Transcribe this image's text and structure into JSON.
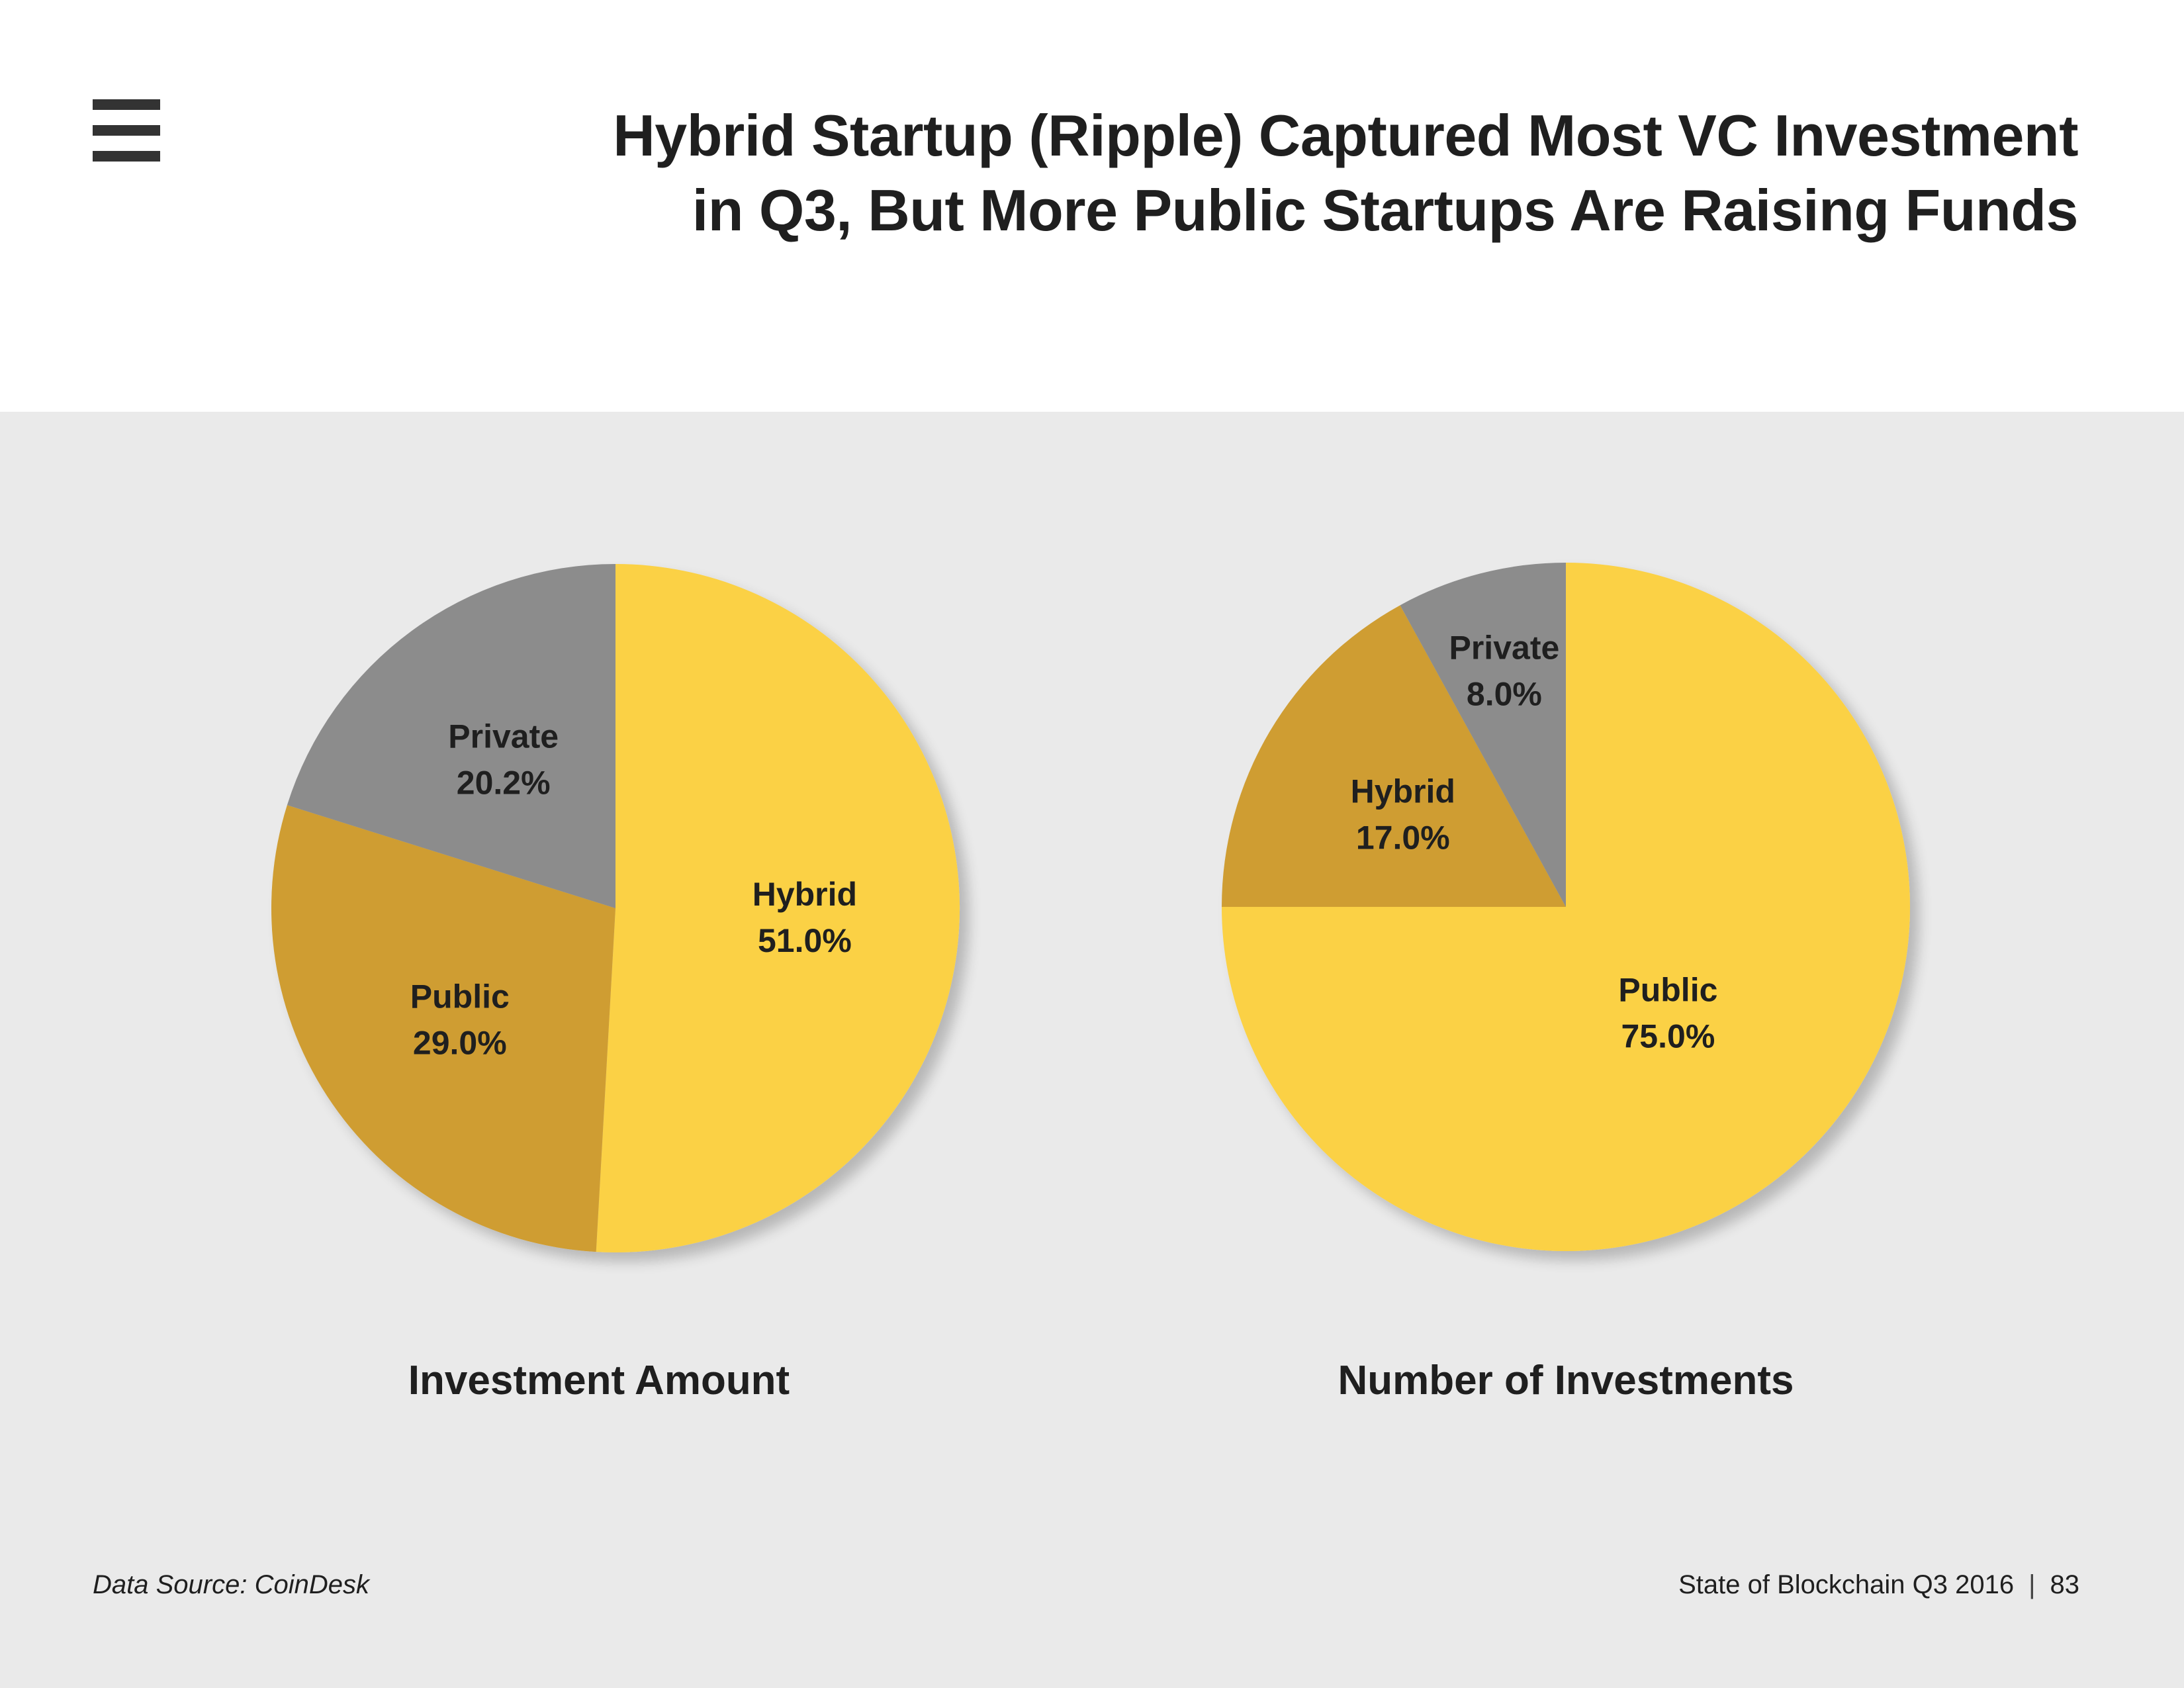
{
  "header": {
    "title_line1": "Hybrid Startup (Ripple) Captured Most VC Investment",
    "title_line2": "in Q3, But More Public Startups Are Raising Funds",
    "menu_icon": "hamburger-menu-icon"
  },
  "colors": {
    "hybrid": "#fbd144",
    "public": "#cf9d31",
    "private": "#8c8c8c",
    "panel_background": "#eaeaea",
    "text": "#1f1f1f"
  },
  "chart_data": [
    {
      "type": "pie",
      "title": "Investment Amount",
      "slices": [
        {
          "label": "Hybrid",
          "value": 51.0,
          "display": "51.0%",
          "color": "#fbd144"
        },
        {
          "label": "Public",
          "value": 29.0,
          "display": "29.0%",
          "color": "#cf9d31"
        },
        {
          "label": "Private",
          "value": 20.2,
          "display": "20.2%",
          "color": "#8c8c8c"
        }
      ],
      "start_angle_deg": 0,
      "direction": "clockwise"
    },
    {
      "type": "pie",
      "title": "Number of Investments",
      "slices": [
        {
          "label": "Public",
          "value": 75.0,
          "display": "75.0%",
          "color": "#fbd144"
        },
        {
          "label": "Hybrid",
          "value": 17.0,
          "display": "17.0%",
          "color": "#cf9d31"
        },
        {
          "label": "Private",
          "value": 8.0,
          "display": "8.0%",
          "color": "#8c8c8c"
        }
      ],
      "start_angle_deg": 0,
      "direction": "clockwise"
    }
  ],
  "footer": {
    "source": "Data Source: CoinDesk",
    "report": "State of Blockchain Q3 2016",
    "separator": "|",
    "page_number": "83"
  }
}
